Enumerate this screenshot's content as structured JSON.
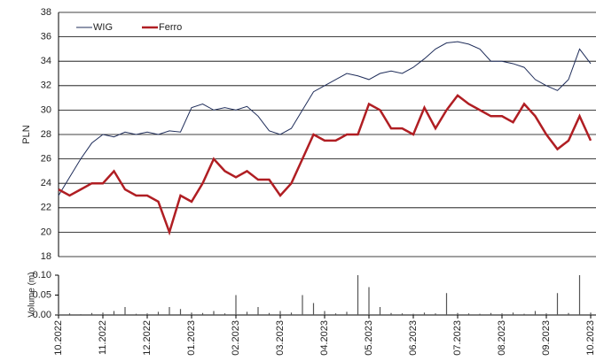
{
  "chart_data": {
    "type": "line",
    "ylabel": "PLN",
    "categories": [
      "10.2022",
      null,
      null,
      null,
      "11.2022",
      null,
      null,
      null,
      "12.2022",
      null,
      null,
      null,
      "01.2023",
      null,
      null,
      null,
      "02.2023",
      null,
      null,
      null,
      "03.2023",
      null,
      null,
      null,
      "04.2023",
      null,
      null,
      null,
      "05.2023",
      null,
      null,
      null,
      "06.2023",
      null,
      null,
      null,
      "07.2023",
      null,
      null,
      null,
      "08.2023",
      null,
      null,
      null,
      "09.2023",
      null,
      null,
      null,
      "10.2023"
    ],
    "series": [
      {
        "name": "WIG",
        "color": "#1f2d5a",
        "values": [
          23,
          24.5,
          26,
          27.3,
          28,
          27.8,
          28.2,
          28,
          28.2,
          28,
          28.3,
          28.2,
          30.2,
          30.5,
          30,
          30.2,
          30,
          30.3,
          29.5,
          28.3,
          28,
          28.5,
          30,
          31.5,
          32,
          32.5,
          33,
          32.8,
          32.5,
          33,
          33.2,
          33,
          33.5,
          34.2,
          35,
          35.5,
          35.6,
          35.4,
          35,
          34,
          34,
          33.8,
          33.5,
          32.5,
          32,
          31.6,
          32.5,
          35,
          33.8
        ]
      },
      {
        "name": "Ferro",
        "color": "#b01e23",
        "values": [
          23.5,
          23,
          23.5,
          24,
          24,
          25,
          23.5,
          23,
          23,
          22.5,
          20,
          23,
          22.5,
          24,
          26,
          25,
          24.5,
          25,
          24.3,
          24.3,
          23,
          24,
          26,
          28,
          27.5,
          27.5,
          28,
          28,
          30.5,
          30,
          28.5,
          28.5,
          28,
          30.2,
          28.5,
          30,
          31.2,
          30.5,
          30,
          29.5,
          29.5,
          29,
          30.5,
          29.5,
          28,
          26.8,
          27.5,
          29.5,
          27.5
        ]
      }
    ],
    "ylim": [
      18,
      38
    ],
    "yticks": [
      18,
      20,
      22,
      24,
      26,
      28,
      30,
      32,
      34,
      36,
      38
    ],
    "grid": true,
    "legend": "top-left",
    "volume": {
      "type": "bar",
      "ylabel": "Volume (m)",
      "color": "#555555",
      "values": [
        0.003,
        0.004,
        0.002,
        0.005,
        0.006,
        0.01,
        0.02,
        0.003,
        0.004,
        0.008,
        0.02,
        0.015,
        0.006,
        0.005,
        0.01,
        0.004,
        0.05,
        0.008,
        0.02,
        0.005,
        0.01,
        0.006,
        0.05,
        0.03,
        0.01,
        0.004,
        0.008,
        0.1,
        0.07,
        0.02,
        0.005,
        0.004,
        0.003,
        0.006,
        0.004,
        0.055,
        0.005,
        0.004,
        0.003,
        0.005,
        0.004,
        0.006,
        0.003,
        0.01,
        0.004,
        0.055,
        0.005,
        0.1,
        0.006
      ],
      "ylim": [
        0,
        0.1
      ],
      "yticks": [
        {
          "value": 0,
          "label": "0.00"
        },
        {
          "value": 0.05,
          "label": "0.05"
        },
        {
          "value": 0.1,
          "label": "0.10"
        }
      ]
    }
  }
}
